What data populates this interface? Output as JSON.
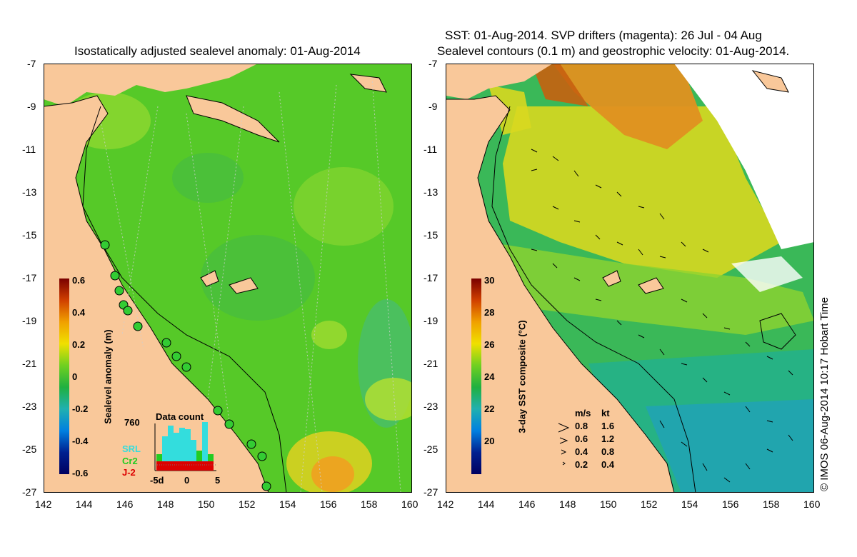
{
  "left_panel": {
    "title": "Isostatically adjusted sealevel anomaly: 01-Aug-2014",
    "colorbar": {
      "label": "Sealevel anomaly (m)",
      "ticks": [
        "0.6",
        "0.4",
        "0.2",
        "0",
        "-0.2",
        "-0.4",
        "-0.6"
      ]
    },
    "data_count": {
      "title": "Data count",
      "max_label": "760",
      "x_ticks": [
        "-5d",
        "0",
        "5"
      ],
      "series": [
        {
          "name": "SRL",
          "color": "#33dddd"
        },
        {
          "name": "Cr2",
          "color": "#22cc22"
        },
        {
          "name": "J-2",
          "color": "#dd0000"
        }
      ]
    }
  },
  "right_panel": {
    "title_line1": "SST: 01-Aug-2014. SVP drifters (magenta): 26 Jul - 04 Aug",
    "title_line2": "Sealevel contours (0.1 m) and geostrophic velocity: 01-Aug-2014.",
    "colorbar": {
      "label": "3-day SST composite (°C)",
      "ticks": [
        "30",
        "28",
        "26",
        "24",
        "22",
        "20"
      ]
    },
    "velocity_legend": {
      "header_ms": "m/s",
      "header_kt": "kt",
      "rows": [
        {
          "ms": "0.8",
          "kt": "1.6"
        },
        {
          "ms": "0.6",
          "kt": "1.2"
        },
        {
          "ms": "0.4",
          "kt": "0.8"
        },
        {
          "ms": "0.2",
          "kt": "0.4"
        }
      ]
    }
  },
  "axes": {
    "lat_ticks": [
      "-7",
      "-9",
      "-11",
      "-13",
      "-15",
      "-17",
      "-19",
      "-21",
      "-23",
      "-25",
      "-27"
    ],
    "lon_ticks": [
      "142",
      "144",
      "146",
      "148",
      "150",
      "152",
      "154",
      "156",
      "158",
      "160"
    ]
  },
  "credit": "© IMOS 06-Aug-2014 10:17 Hobart Time",
  "colors": {
    "land": "#f9c89a",
    "sla_background": "#5ccf2a",
    "sst_warm": "#e8d020",
    "sst_cool": "#2fbf60"
  }
}
